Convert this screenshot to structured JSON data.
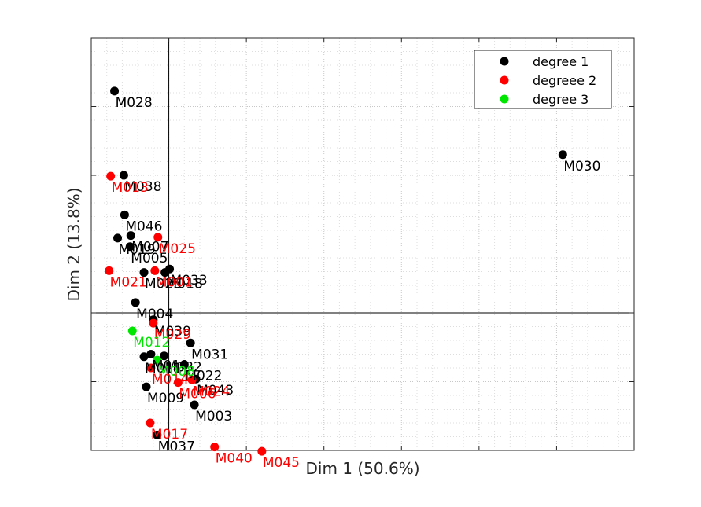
{
  "chart_data": {
    "type": "scatter",
    "title": "",
    "xlabel": "Dim 1 (50.6%)",
    "ylabel": "Dim 2 (13.8%)",
    "xlim": [
      -1.0,
      6.0
    ],
    "ylim": [
      -1.6,
      3.2
    ],
    "grid": true,
    "legend_position": "top-right",
    "series": [
      {
        "name": "degree 1",
        "color": "#000000",
        "points": [
          {
            "label": "M028",
            "x": -0.7,
            "y": 2.58
          },
          {
            "label": "M038",
            "x": -0.58,
            "y": 1.6
          },
          {
            "label": "M030",
            "x": 5.08,
            "y": 1.84
          },
          {
            "label": "M046",
            "x": -0.57,
            "y": 1.14
          },
          {
            "label": "M019",
            "x": -0.66,
            "y": 0.87
          },
          {
            "label": "M007",
            "x": -0.49,
            "y": 0.9
          },
          {
            "label": "M005",
            "x": -0.5,
            "y": 0.77
          },
          {
            "label": "M023",
            "x": -0.32,
            "y": 0.47
          },
          {
            "label": "M018",
            "x": -0.05,
            "y": 0.47
          },
          {
            "label": "M033",
            "x": 0.01,
            "y": 0.51
          },
          {
            "label": "M004",
            "x": -0.43,
            "y": 0.12
          },
          {
            "label": "M039",
            "x": -0.2,
            "y": -0.08
          },
          {
            "label": "M031",
            "x": 0.28,
            "y": -0.35
          },
          {
            "label": "M011",
            "x": -0.32,
            "y": -0.51
          },
          {
            "label": "M010",
            "x": -0.23,
            "y": -0.48
          },
          {
            "label": "M032",
            "x": -0.06,
            "y": -0.5
          },
          {
            "label": "M022",
            "x": 0.2,
            "y": -0.6
          },
          {
            "label": "M009",
            "x": -0.29,
            "y": -0.86
          },
          {
            "label": "M043",
            "x": 0.35,
            "y": -0.77
          },
          {
            "label": "M003",
            "x": 0.33,
            "y": -1.07
          },
          {
            "label": "M037",
            "x": -0.15,
            "y": -1.42
          }
        ]
      },
      {
        "name": "degreee 2",
        "color": "#ff0000",
        "points": [
          {
            "label": "M013",
            "x": -0.75,
            "y": 1.59
          },
          {
            "label": "M025",
            "x": -0.14,
            "y": 0.88
          },
          {
            "label": "M021",
            "x": -0.77,
            "y": 0.49
          },
          {
            "label": "M001",
            "x": -0.18,
            "y": 0.49
          },
          {
            "label": "M029",
            "x": -0.2,
            "y": -0.12
          },
          {
            "label": "M014",
            "x": -0.23,
            "y": -0.64
          },
          {
            "label": "M006",
            "x": 0.12,
            "y": -0.81
          },
          {
            "label": "M024",
            "x": 0.3,
            "y": -0.78
          },
          {
            "label": "M017",
            "x": -0.24,
            "y": -1.28
          },
          {
            "label": "M040",
            "x": 0.59,
            "y": -1.56
          },
          {
            "label": "M045",
            "x": 1.2,
            "y": -1.61
          }
        ]
      },
      {
        "name": "degree 3",
        "color": "#00e600",
        "points": [
          {
            "label": "M012",
            "x": -0.47,
            "y": -0.21
          },
          {
            "label": "M008",
            "x": -0.15,
            "y": -0.55
          }
        ]
      }
    ]
  }
}
